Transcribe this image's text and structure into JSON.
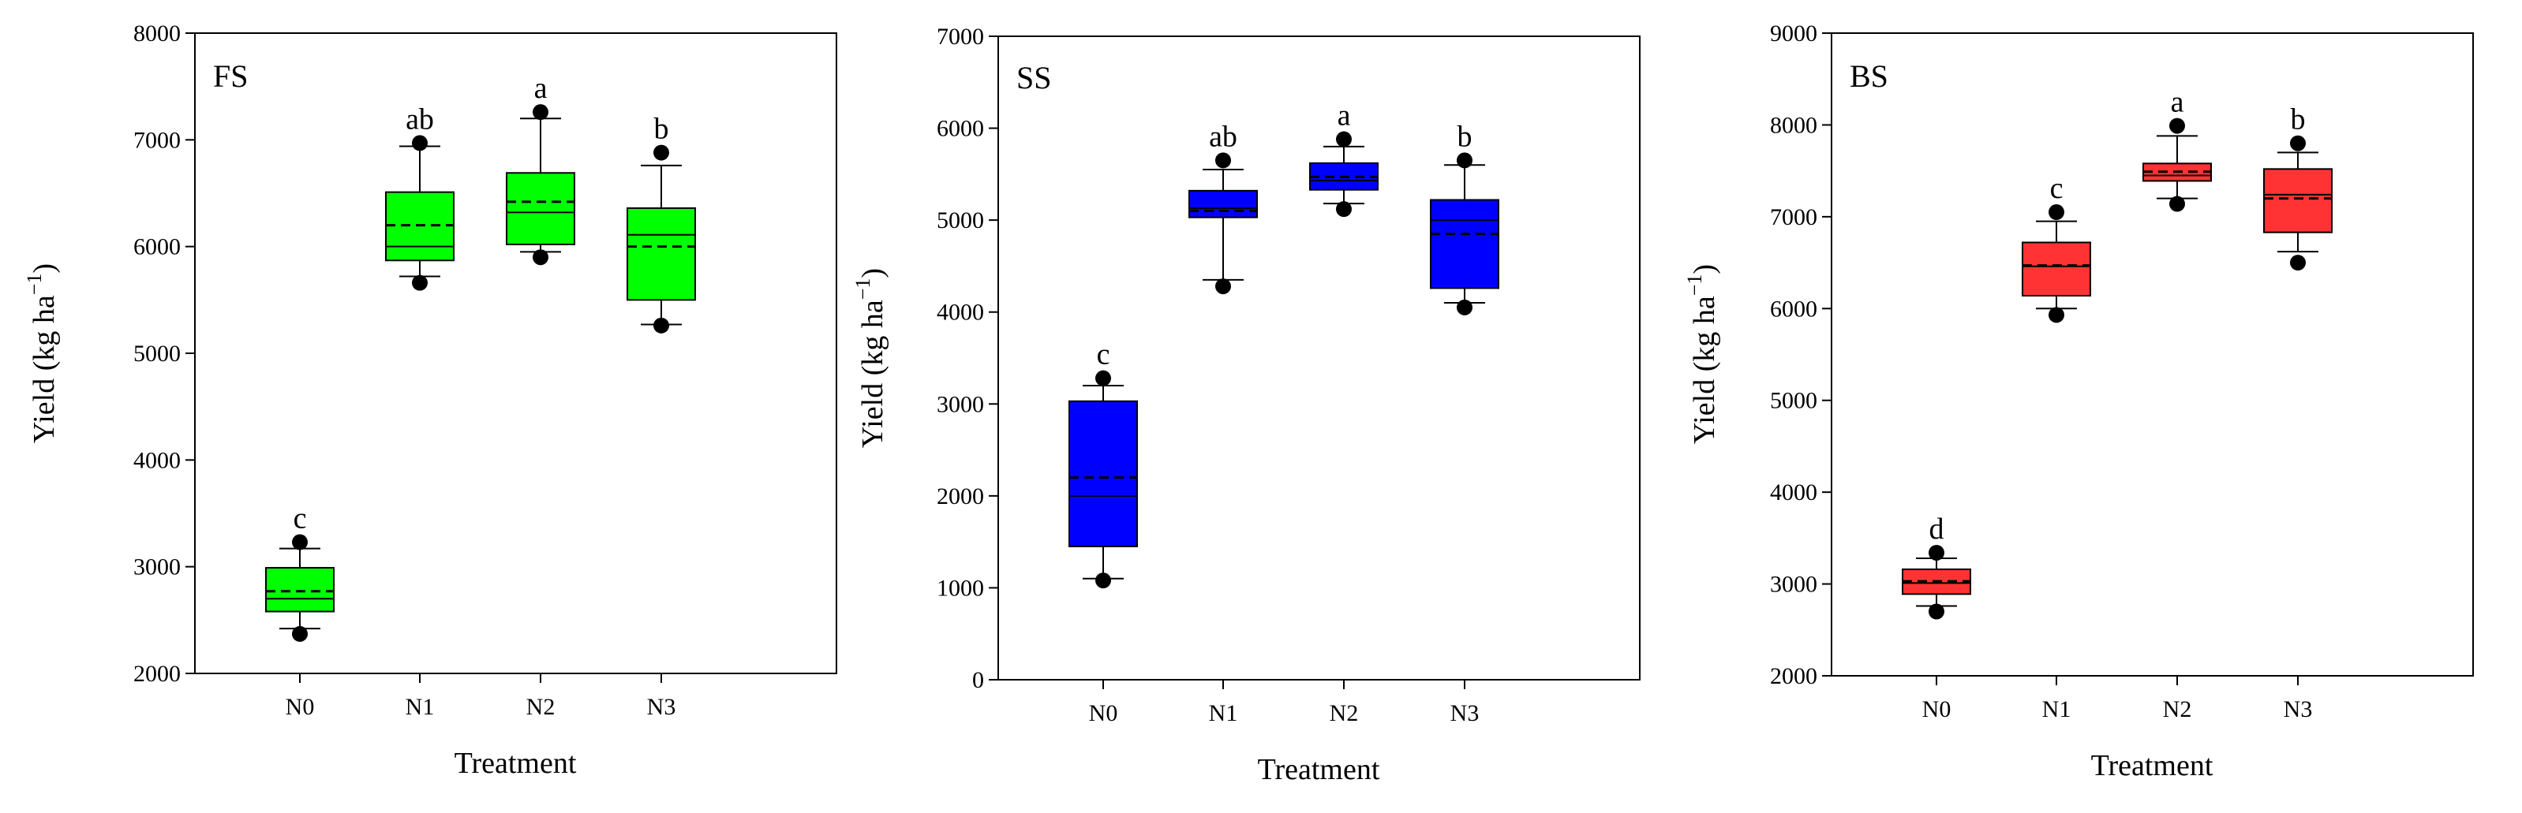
{
  "figure": {
    "colors": {
      "FS": "#00ff00",
      "SS": "#0000ff",
      "BS": "#ff3333",
      "line": "#000000",
      "frame": "#000000"
    }
  },
  "chart_data": [
    {
      "type": "box",
      "id": "FS",
      "panel_label": "FS",
      "xlabel": "Treatment",
      "ylabel": "Yield (kg ha",
      "ylabel_unit": "ha",
      "ylabel_exponent": "−1",
      "ylim": [
        2000,
        8000
      ],
      "yticks": [
        "2000",
        "3000",
        "4000",
        "5000",
        "6000",
        "7000",
        "8000"
      ],
      "categories": [
        "N0",
        "N1",
        "N2",
        "N3"
      ],
      "color_key": "FS",
      "boxes": [
        {
          "category": "N0",
          "whisker_low": 2420,
          "q1": 2580,
          "median": 2700,
          "mean": 2770,
          "q3": 2990,
          "whisker_high": 3170,
          "outliers": [
            2370,
            3230
          ],
          "letter": "c"
        },
        {
          "category": "N1",
          "whisker_low": 5720,
          "q1": 5870,
          "median": 6000,
          "mean": 6200,
          "q3": 6510,
          "whisker_high": 6940,
          "outliers": [
            5660,
            6970
          ],
          "letter": "ab"
        },
        {
          "category": "N2",
          "whisker_low": 5950,
          "q1": 6020,
          "median": 6320,
          "mean": 6420,
          "q3": 6690,
          "whisker_high": 7200,
          "outliers": [
            5900,
            7260
          ],
          "letter": "a"
        },
        {
          "category": "N3",
          "whisker_low": 5270,
          "q1": 5500,
          "median": 6110,
          "mean": 6000,
          "q3": 6360,
          "whisker_high": 6760,
          "outliers": [
            5260,
            6880
          ],
          "letter": "b"
        }
      ]
    },
    {
      "type": "box",
      "id": "SS",
      "panel_label": "SS",
      "xlabel": "Treatment",
      "ylabel": "Yield (kg ha",
      "ylabel_unit": "ha",
      "ylabel_exponent": "−1",
      "ylim": [
        0,
        7000
      ],
      "yticks": [
        "0",
        "1000",
        "2000",
        "3000",
        "4000",
        "5000",
        "6000",
        "7000"
      ],
      "categories": [
        "N0",
        "N1",
        "N2",
        "N3"
      ],
      "color_key": "SS",
      "boxes": [
        {
          "category": "N0",
          "whisker_low": 1100,
          "q1": 1450,
          "median": 2000,
          "mean": 2200,
          "q3": 3030,
          "whisker_high": 3200,
          "outliers": [
            1080,
            3280
          ],
          "letter": "c"
        },
        {
          "category": "N1",
          "whisker_low": 4350,
          "q1": 5030,
          "median": 5130,
          "mean": 5100,
          "q3": 5320,
          "whisker_high": 5550,
          "outliers": [
            4280,
            5650
          ],
          "letter": "ab"
        },
        {
          "category": "N2",
          "whisker_low": 5180,
          "q1": 5330,
          "median": 5430,
          "mean": 5470,
          "q3": 5620,
          "whisker_high": 5800,
          "outliers": [
            5120,
            5880
          ],
          "letter": "a"
        },
        {
          "category": "N3",
          "whisker_low": 4100,
          "q1": 4260,
          "median": 5000,
          "mean": 4850,
          "q3": 5220,
          "whisker_high": 5600,
          "outliers": [
            4050,
            5650
          ],
          "letter": "b"
        }
      ]
    },
    {
      "type": "box",
      "id": "BS",
      "panel_label": "BS",
      "xlabel": "Treatment",
      "ylabel": "Yield (kg ha",
      "ylabel_unit": "ha",
      "ylabel_exponent": "−1",
      "ylim": [
        2000,
        9000
      ],
      "yticks": [
        "2000",
        "3000",
        "4000",
        "5000",
        "6000",
        "7000",
        "8000",
        "9000"
      ],
      "categories": [
        "N0",
        "N1",
        "N2",
        "N3"
      ],
      "color_key": "BS",
      "boxes": [
        {
          "category": "N0",
          "whisker_low": 2760,
          "q1": 2890,
          "median": 3010,
          "mean": 3030,
          "q3": 3160,
          "whisker_high": 3280,
          "outliers": [
            2700,
            3340
          ],
          "letter": "d"
        },
        {
          "category": "N1",
          "whisker_low": 6000,
          "q1": 6140,
          "median": 6460,
          "mean": 6470,
          "q3": 6720,
          "whisker_high": 6950,
          "outliers": [
            5930,
            7050
          ],
          "letter": "c"
        },
        {
          "category": "N2",
          "whisker_low": 7200,
          "q1": 7390,
          "median": 7450,
          "mean": 7490,
          "q3": 7580,
          "whisker_high": 7880,
          "outliers": [
            7140,
            7990
          ],
          "letter": "a"
        },
        {
          "category": "N3",
          "whisker_low": 6620,
          "q1": 6830,
          "median": 7240,
          "mean": 7200,
          "q3": 7520,
          "whisker_high": 7700,
          "outliers": [
            6500,
            7800
          ],
          "letter": "b"
        }
      ]
    }
  ]
}
